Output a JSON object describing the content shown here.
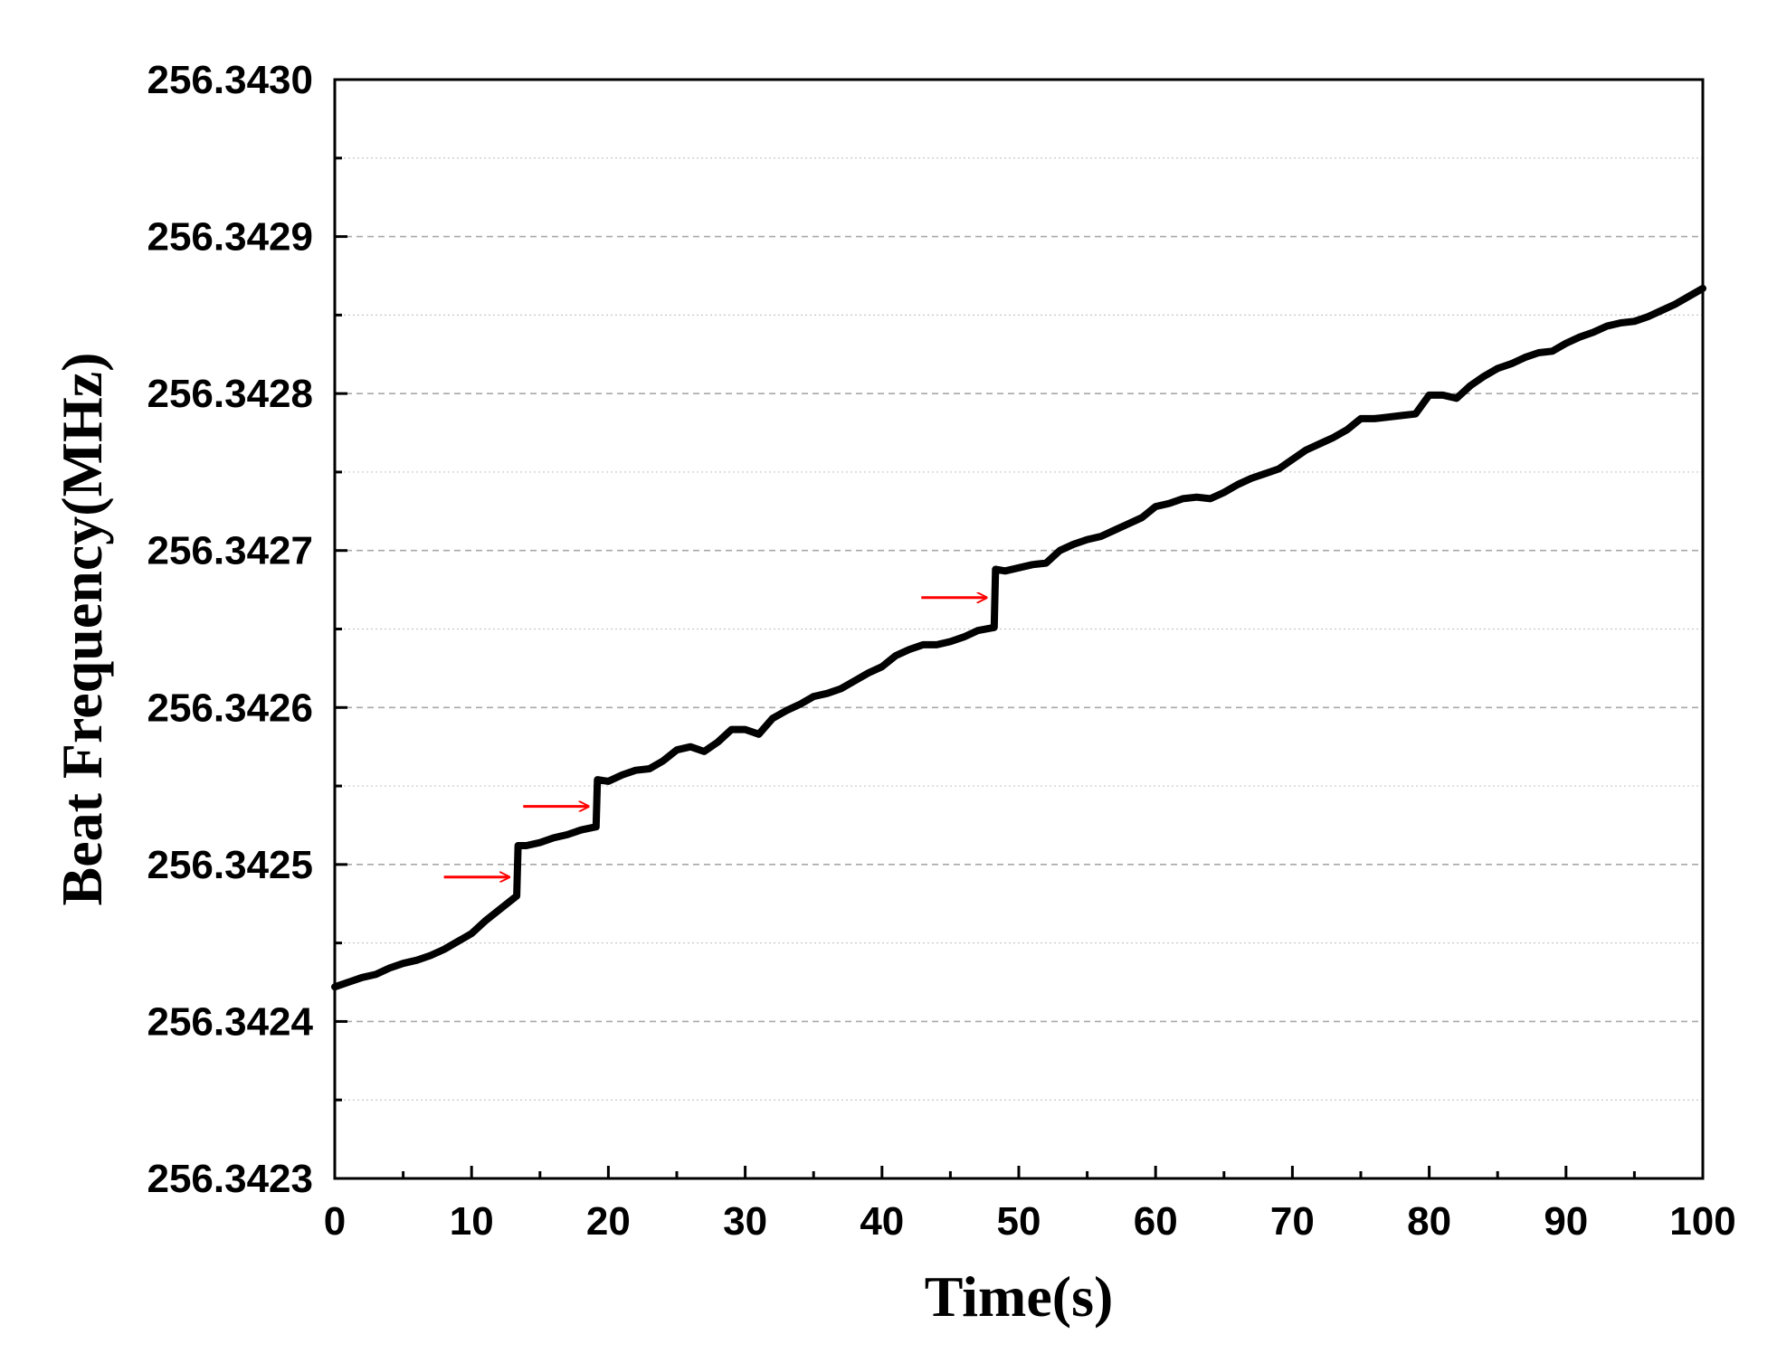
{
  "chart_data": {
    "type": "line",
    "title": "",
    "xlabel": "Time(s)",
    "ylabel": "Beat Frequency(MHz)",
    "xlim": [
      0,
      100
    ],
    "ylim": [
      256.3423,
      256.343
    ],
    "x_ticks": [
      0,
      10,
      20,
      30,
      40,
      50,
      60,
      70,
      80,
      90,
      100
    ],
    "x_tick_labels": [
      "0",
      "10",
      "20",
      "30",
      "40",
      "50",
      "60",
      "70",
      "80",
      "90",
      "100"
    ],
    "y_ticks": [
      256.3423,
      256.3424,
      256.3425,
      256.3426,
      256.3427,
      256.3428,
      256.3429,
      256.343
    ],
    "y_tick_labels": [
      "256.3423",
      "256.3424",
      "256.3425",
      "256.3426",
      "256.3427",
      "256.3428",
      "256.3429",
      "256.3430"
    ],
    "grid": true,
    "legend": "none",
    "line_color": "#000000",
    "annotation_color": "#ff0000",
    "series": [
      {
        "x": [
          0,
          1,
          2,
          3,
          4,
          5,
          6,
          7,
          8,
          9,
          10,
          11,
          12,
          13.3,
          13.4,
          14,
          15,
          16,
          17,
          18,
          19.1,
          19.2,
          20,
          21,
          22,
          23,
          24,
          25,
          26,
          27,
          28,
          29,
          30,
          31,
          32,
          33,
          34,
          35,
          36,
          37,
          38,
          39,
          40,
          41,
          42,
          43,
          44,
          45,
          46,
          47,
          48.2,
          48.3,
          49,
          50,
          51,
          52,
          53,
          54,
          55,
          56,
          57,
          58,
          59,
          60,
          61,
          62,
          63,
          64,
          65,
          66,
          67,
          68,
          69,
          70,
          71,
          72,
          73,
          74,
          75,
          76,
          77,
          78,
          79,
          80,
          81,
          82,
          83,
          84,
          85,
          86,
          87,
          88,
          89,
          90,
          91,
          92,
          93,
          94,
          95,
          96,
          97,
          98,
          99,
          100
        ],
        "y": [
          256.342422,
          256.342425,
          256.342428,
          256.34243,
          256.342434,
          256.342437,
          256.342439,
          256.342442,
          256.342446,
          256.342451,
          256.342456,
          256.342464,
          256.342471,
          256.34248,
          256.342512,
          256.342512,
          256.342514,
          256.342517,
          256.342519,
          256.342522,
          256.342524,
          256.342554,
          256.342553,
          256.342557,
          256.34256,
          256.342561,
          256.342566,
          256.342573,
          256.342575,
          256.342572,
          256.342578,
          256.342586,
          256.342586,
          256.342583,
          256.342593,
          256.342598,
          256.342602,
          256.342607,
          256.342609,
          256.342612,
          256.342617,
          256.342622,
          256.342626,
          256.342633,
          256.342637,
          256.34264,
          256.34264,
          256.342642,
          256.342645,
          256.342649,
          256.342651,
          256.342688,
          256.342687,
          256.342689,
          256.342691,
          256.342692,
          256.3427,
          256.342704,
          256.342707,
          256.342709,
          256.342713,
          256.342717,
          256.342721,
          256.342728,
          256.34273,
          256.342733,
          256.342734,
          256.342733,
          256.342737,
          256.342742,
          256.342746,
          256.342749,
          256.342752,
          256.342758,
          256.342764,
          256.342768,
          256.342772,
          256.342777,
          256.342784,
          256.342784,
          256.342785,
          256.342786,
          256.342787,
          256.342799,
          256.342799,
          256.342797,
          256.342805,
          256.342811,
          256.342816,
          256.342819,
          256.342823,
          256.342826,
          256.342827,
          256.342832,
          256.342836,
          256.342839,
          256.342843,
          256.342845,
          256.342846,
          256.342849,
          256.342853,
          256.342857,
          256.342862,
          256.342867
        ]
      }
    ],
    "annotations": [
      {
        "type": "arrow",
        "x": 13.4,
        "y": 256.342492
      },
      {
        "type": "arrow",
        "x": 19.2,
        "y": 256.342537
      },
      {
        "type": "arrow",
        "x": 48.3,
        "y": 256.34267
      }
    ]
  }
}
